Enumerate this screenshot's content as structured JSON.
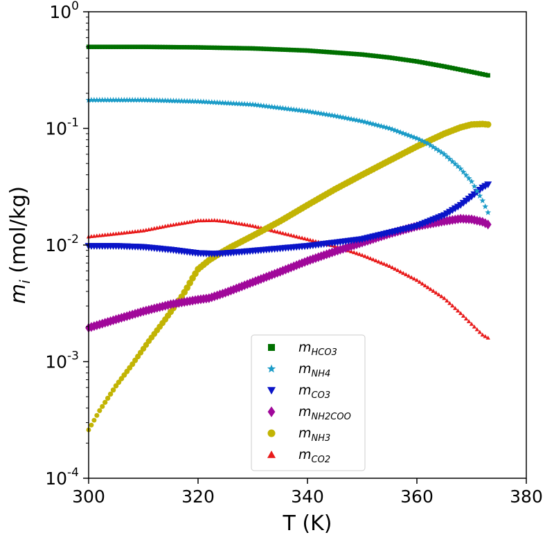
{
  "chart_data": {
    "type": "scatter",
    "xlabel": "T (K)",
    "ylabel_base": "m",
    "ylabel_sub": "i",
    "ylabel_units": "(mol/kg)",
    "xlim": [
      300,
      380
    ],
    "ylim": [
      0.0001,
      1
    ],
    "yscale": "log",
    "x_ticks": [
      "300",
      "320",
      "340",
      "360",
      "380"
    ],
    "y_ticks": [
      {
        "base": "10",
        "exp": "-4"
      },
      {
        "base": "10",
        "exp": "-3"
      },
      {
        "base": "10",
        "exp": "-2"
      },
      {
        "base": "10",
        "exp": "-1"
      },
      {
        "base": "10",
        "exp": "0"
      }
    ],
    "legend_position": "lower center",
    "series": [
      {
        "name_base": "m",
        "name_sub": "HCO3",
        "marker": "square",
        "color": "#007000",
        "x": [
          300,
          310,
          320,
          330,
          340,
          350,
          355,
          360,
          365,
          370,
          373
        ],
        "y": [
          0.5,
          0.5,
          0.495,
          0.485,
          0.465,
          0.43,
          0.405,
          0.375,
          0.34,
          0.305,
          0.285
        ]
      },
      {
        "name_base": "m",
        "name_sub": "NH4",
        "marker": "star",
        "color": "#1a9bc7",
        "x": [
          300,
          310,
          320,
          330,
          340,
          345,
          350,
          355,
          360,
          362,
          365,
          368,
          370,
          372,
          373
        ],
        "y": [
          0.175,
          0.175,
          0.17,
          0.16,
          0.14,
          0.128,
          0.115,
          0.1,
          0.082,
          0.074,
          0.06,
          0.045,
          0.035,
          0.024,
          0.019
        ]
      },
      {
        "name_base": "m",
        "name_sub": "CO3",
        "marker": "triangle-down",
        "color": "#0a14c8",
        "x": [
          300,
          305,
          310,
          315,
          320,
          323,
          325,
          330,
          340,
          350,
          360,
          365,
          368,
          370,
          372,
          373
        ],
        "y": [
          0.0098,
          0.0098,
          0.0096,
          0.0091,
          0.0085,
          0.0084,
          0.0085,
          0.0089,
          0.0098,
          0.0112,
          0.0145,
          0.018,
          0.022,
          0.026,
          0.031,
          0.033
        ]
      },
      {
        "name_base": "m",
        "name_sub": "NH2COO",
        "marker": "diamond",
        "color": "#a0089a",
        "x": [
          300,
          305,
          310,
          315,
          320,
          322,
          325,
          330,
          335,
          340,
          345,
          350,
          355,
          360,
          365,
          368,
          370,
          372,
          373
        ],
        "y": [
          0.00195,
          0.0023,
          0.0027,
          0.0031,
          0.0034,
          0.0035,
          0.0039,
          0.0048,
          0.0059,
          0.0073,
          0.0088,
          0.0105,
          0.0125,
          0.0145,
          0.016,
          0.0168,
          0.0166,
          0.0158,
          0.015
        ]
      },
      {
        "name_base": "m",
        "name_sub": "NH3",
        "marker": "circle",
        "color": "#c2b404",
        "x": [
          300,
          302,
          305,
          308,
          311,
          314,
          317,
          318,
          319,
          320,
          322,
          324,
          326,
          330,
          335,
          340,
          345,
          350,
          355,
          360,
          365,
          368,
          370,
          372,
          373
        ],
        "y": [
          0.00026,
          0.00038,
          0.00062,
          0.00095,
          0.0015,
          0.0023,
          0.0036,
          0.0043,
          0.0052,
          0.0062,
          0.0074,
          0.0085,
          0.0096,
          0.012,
          0.016,
          0.022,
          0.03,
          0.04,
          0.053,
          0.07,
          0.09,
          0.102,
          0.108,
          0.109,
          0.108
        ]
      },
      {
        "name_base": "m",
        "name_sub": "CO2",
        "marker": "triangle-up",
        "color": "#e81a1a",
        "x": [
          300,
          305,
          310,
          315,
          320,
          323,
          325,
          330,
          335,
          340,
          345,
          350,
          355,
          360,
          365,
          368,
          370,
          372,
          373
        ],
        "y": [
          0.0118,
          0.0125,
          0.0133,
          0.0148,
          0.0162,
          0.0163,
          0.016,
          0.0146,
          0.0128,
          0.0112,
          0.0098,
          0.0082,
          0.0066,
          0.005,
          0.0035,
          0.0026,
          0.0021,
          0.0017,
          0.0016
        ]
      }
    ]
  }
}
